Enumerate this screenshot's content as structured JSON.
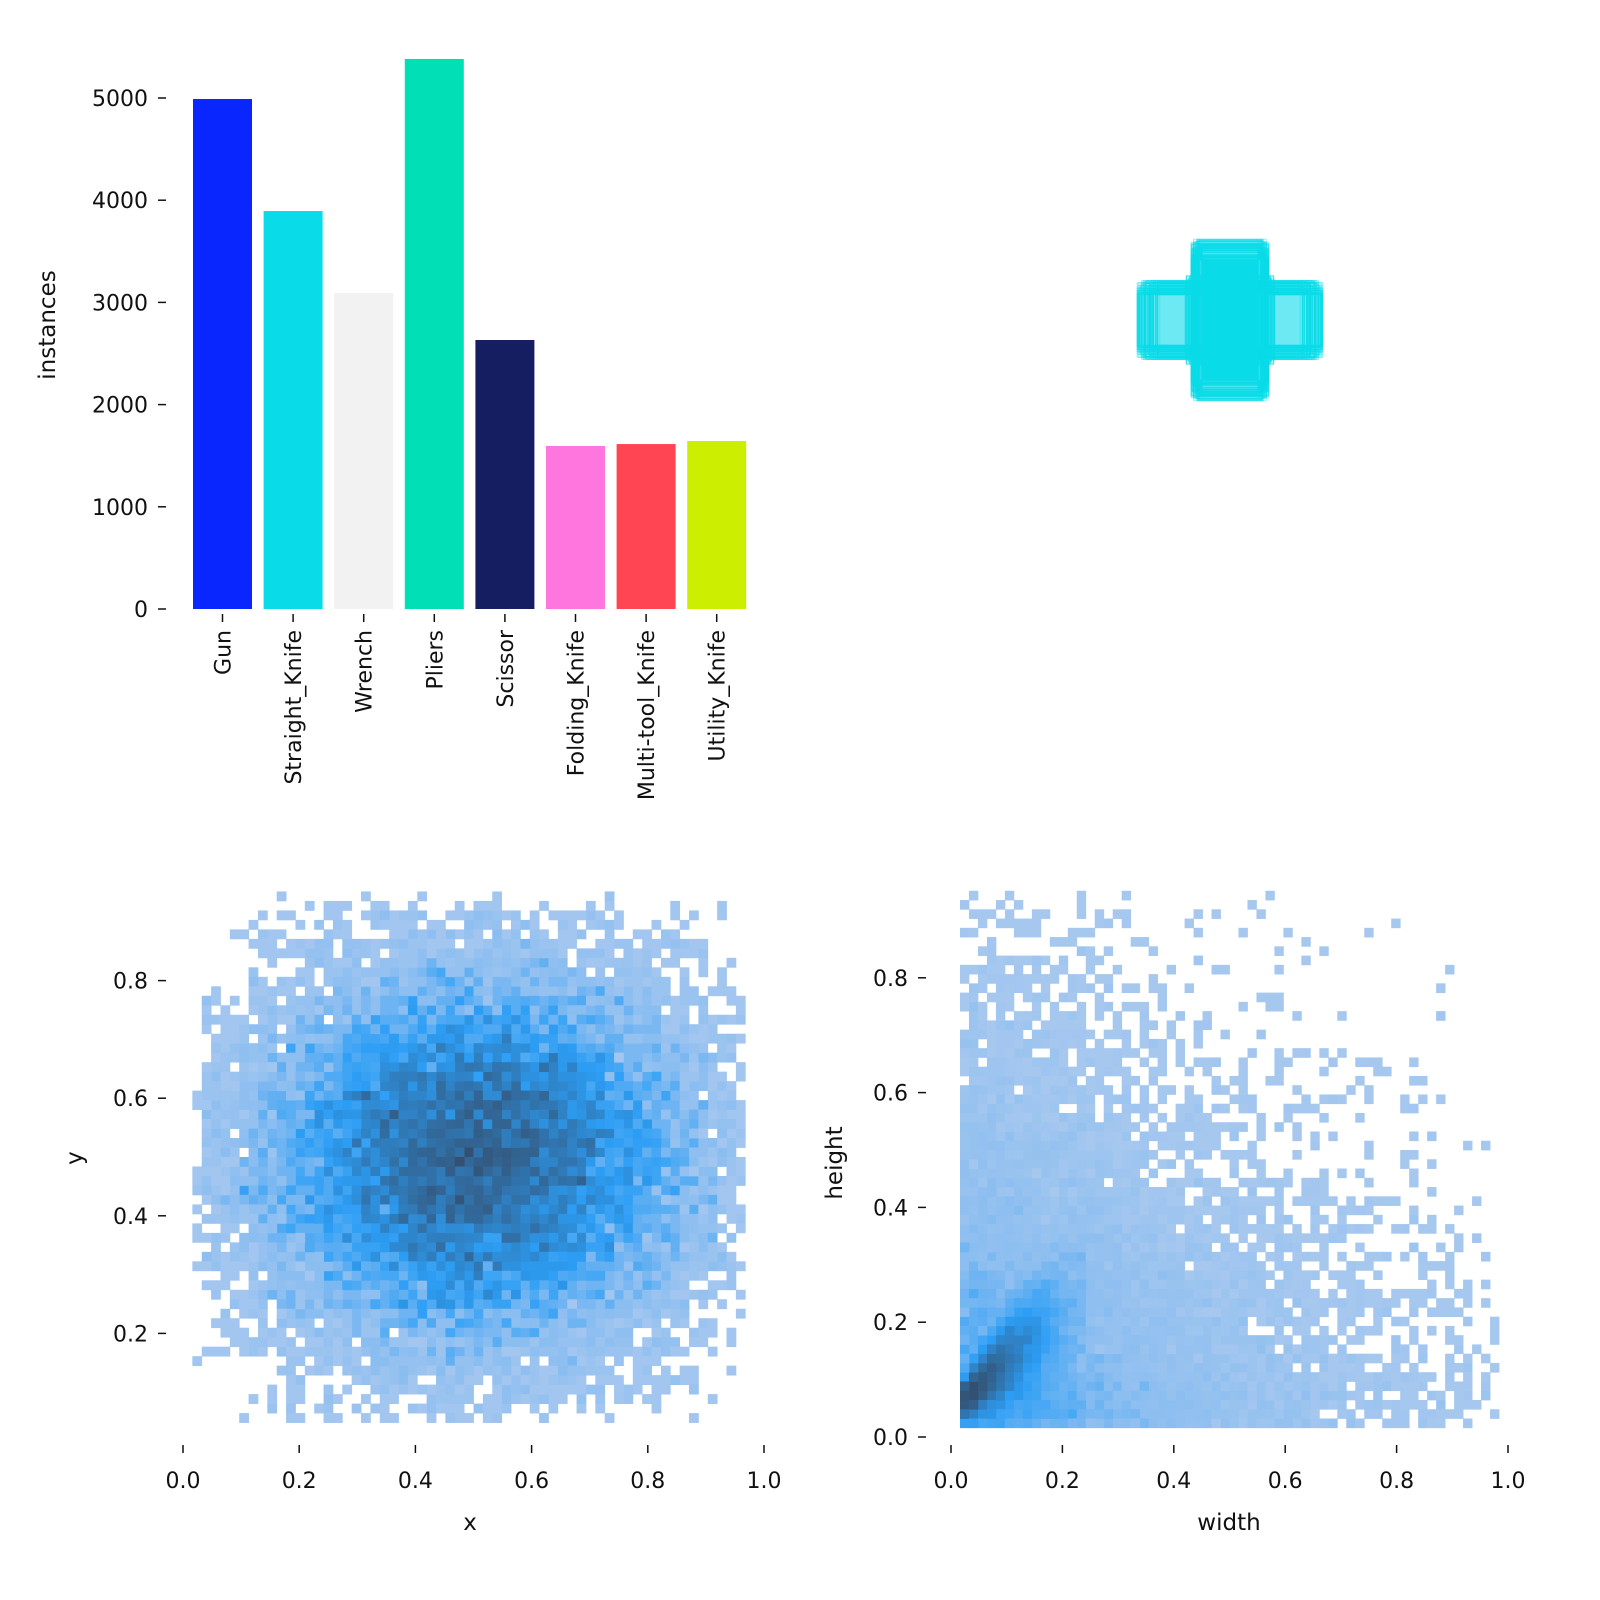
{
  "chart_data": [
    {
      "type": "bar",
      "ylabel": "instances",
      "categories": [
        "Gun",
        "Straight_Knife",
        "Wrench",
        "Pliers",
        "Scissor",
        "Folding_Knife",
        "Multi-tool_Knife",
        "Utility_Knife"
      ],
      "values": [
        4990,
        3894,
        3092,
        5382,
        2632,
        1595,
        1614,
        1644
      ],
      "colors": [
        "#0a26ff",
        "#0adbe9",
        "#f2f2f2",
        "#00dfb6",
        "#141e60",
        "#ff77de",
        "#ff4554",
        "#ccee00"
      ],
      "yticks": [
        "0",
        "1000",
        "2000",
        "3000",
        "4000",
        "5000"
      ],
      "ylim": [
        0,
        5500
      ]
    },
    {
      "type": "box-overlay",
      "description_color": "#0adbe9"
    },
    {
      "type": "heatmap",
      "xlabel": "x",
      "ylabel": "y",
      "xticks": [
        "0.0",
        "0.2",
        "0.4",
        "0.6",
        "0.8",
        "1.0"
      ],
      "yticks": [
        "0.2",
        "0.4",
        "0.6",
        "0.8"
      ],
      "xlim": [
        0,
        1
      ],
      "ylim": [
        0,
        1
      ],
      "distribution": {
        "x_mean": 0.5,
        "x_std": 0.19,
        "y_mean": 0.5,
        "y_std": 0.16,
        "x_range": [
          0.03,
          0.96
        ],
        "y_range": [
          0.05,
          0.94
        ]
      }
    },
    {
      "type": "heatmap",
      "xlabel": "width",
      "ylabel": "height",
      "xticks": [
        "0.0",
        "0.2",
        "0.4",
        "0.6",
        "0.8",
        "1.0"
      ],
      "yticks": [
        "0.0",
        "0.2",
        "0.4",
        "0.6",
        "0.8"
      ],
      "xlim": [
        0,
        1
      ],
      "ylim": [
        0,
        1
      ],
      "distribution": {
        "min": 0.02,
        "scale": 0.13
      }
    }
  ]
}
